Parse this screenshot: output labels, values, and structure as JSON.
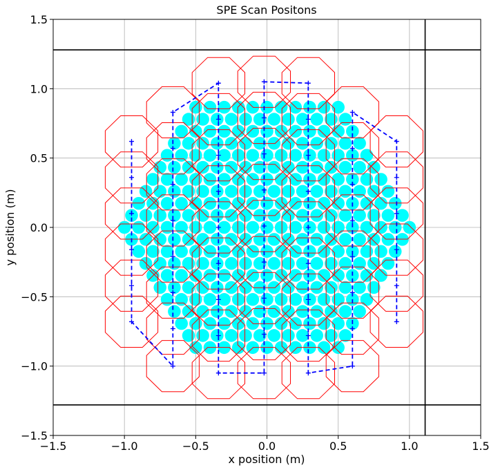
{
  "chart_data": {
    "type": "scatter",
    "title": "SPE Scan Positons",
    "xlabel": "x position (m)",
    "ylabel": "y position (m)",
    "xlim": [
      -1.5,
      1.5
    ],
    "ylim": [
      -1.5,
      1.5
    ],
    "grid": true,
    "xticks": [
      -1.5,
      -1.0,
      -0.5,
      0.0,
      0.5,
      1.0,
      1.5
    ],
    "yticks": [
      -1.5,
      -1.0,
      -0.5,
      0.0,
      0.5,
      1.0,
      1.5
    ],
    "xtick_labels": [
      "−1.5",
      "−1.0",
      "−0.5",
      "0.0",
      "0.5",
      "1.0",
      "1.5"
    ],
    "ytick_labels": [
      "−1.5",
      "−1.0",
      "−0.5",
      "0.0",
      "0.5",
      "1.0",
      "1.5"
    ],
    "boundary_lines": {
      "horizontal_y": [
        1.28,
        -1.28
      ],
      "vertical_x": [
        1.11
      ],
      "color": "#000000"
    },
    "pmt_array": {
      "color": "#00ffff",
      "radius": 0.045,
      "spacing": 0.1,
      "extent_radius": 1.09
    },
    "scan_octagons": {
      "color": "#ff0000",
      "radius": 0.2
    },
    "scan_columns": [
      {
        "x": -0.95,
        "y": [
          0.62,
          0.36,
          0.1,
          -0.16,
          -0.42,
          -0.68
        ]
      },
      {
        "x": -0.66,
        "y": [
          0.83,
          0.57,
          0.31,
          0.05,
          -0.21,
          -0.47,
          -0.73,
          -1.0
        ]
      },
      {
        "x": -0.34,
        "y": [
          1.04,
          0.78,
          0.52,
          0.26,
          0.0,
          -0.26,
          -0.52,
          -0.78,
          -1.05
        ]
      },
      {
        "x": -0.02,
        "y": [
          1.05,
          0.79,
          0.53,
          0.27,
          0.01,
          -0.25,
          -0.51,
          -0.77,
          -1.05
        ]
      },
      {
        "x": 0.29,
        "y": [
          1.04,
          0.78,
          0.52,
          0.26,
          0.0,
          -0.26,
          -0.52,
          -0.78,
          -1.05
        ]
      },
      {
        "x": 0.6,
        "y": [
          0.83,
          0.57,
          0.31,
          0.05,
          -0.21,
          -0.47,
          -0.73,
          -1.0
        ]
      },
      {
        "x": 0.91,
        "y": [
          0.62,
          0.36,
          0.1,
          -0.16,
          -0.42,
          -0.68
        ]
      }
    ],
    "scan_path": {
      "color": "#0000ff",
      "style": "dashed",
      "marker": "+"
    }
  }
}
